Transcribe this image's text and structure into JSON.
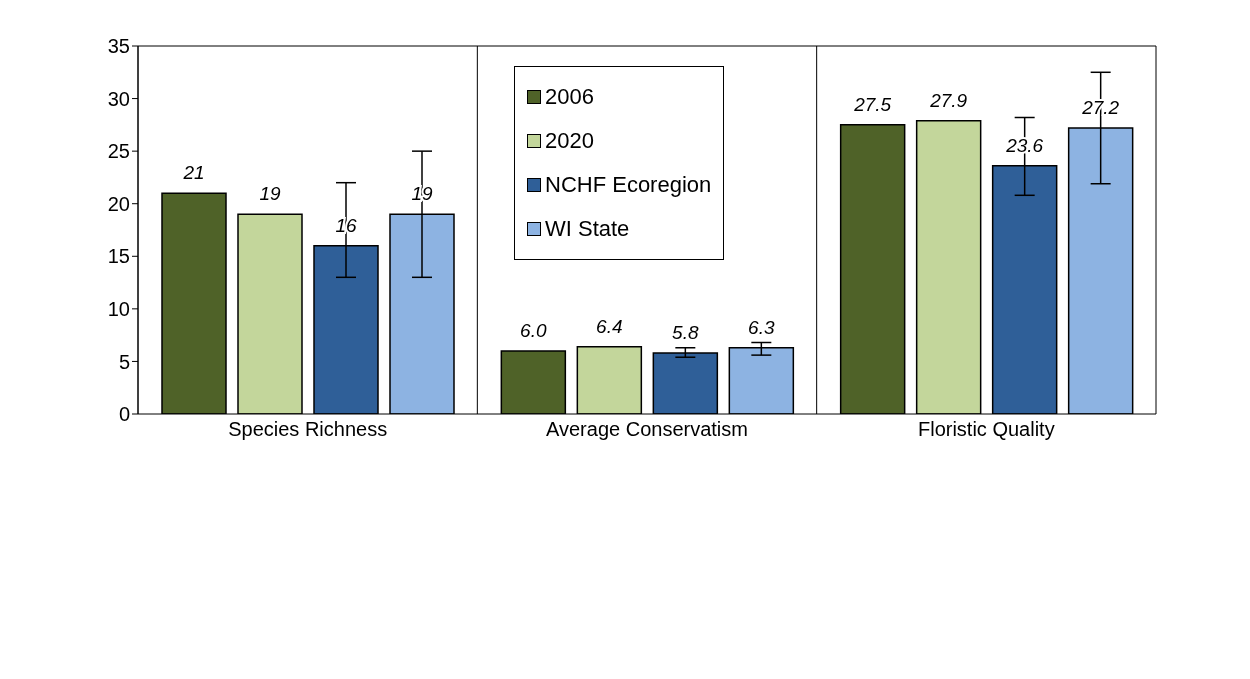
{
  "chart_data": {
    "type": "bar",
    "categories": [
      "Species Richness",
      "Average Conservatism",
      "Floristic Quality"
    ],
    "series": [
      {
        "name": "2006",
        "color": "#4f6228",
        "values": [
          21,
          6.0,
          27.5
        ],
        "value_labels": [
          "21",
          "6.0",
          "27.5"
        ]
      },
      {
        "name": "2020",
        "color": "#c3d69b",
        "values": [
          19,
          6.4,
          27.9
        ],
        "value_labels": [
          "19",
          "6.4",
          "27.9"
        ]
      },
      {
        "name": "NCHF Ecoregion",
        "color": "#2f5f98",
        "values": [
          16,
          5.8,
          23.6
        ],
        "value_labels": [
          "16",
          "5.8",
          "23.6"
        ],
        "errors": [
          [
            13,
            22
          ],
          [
            5.4,
            6.3
          ],
          [
            20.8,
            28.2
          ]
        ]
      },
      {
        "name": "WI State",
        "color": "#8db3e2",
        "values": [
          19,
          6.3,
          27.2
        ],
        "value_labels": [
          "19",
          "6.3",
          "27.2"
        ],
        "errors": [
          [
            13,
            25
          ],
          [
            5.6,
            6.8
          ],
          [
            21.9,
            32.5
          ]
        ]
      }
    ],
    "ylim": [
      0,
      35
    ],
    "yticks": [
      0,
      5,
      10,
      15,
      20,
      25,
      30,
      35
    ],
    "grid": "x",
    "legend": "top"
  }
}
